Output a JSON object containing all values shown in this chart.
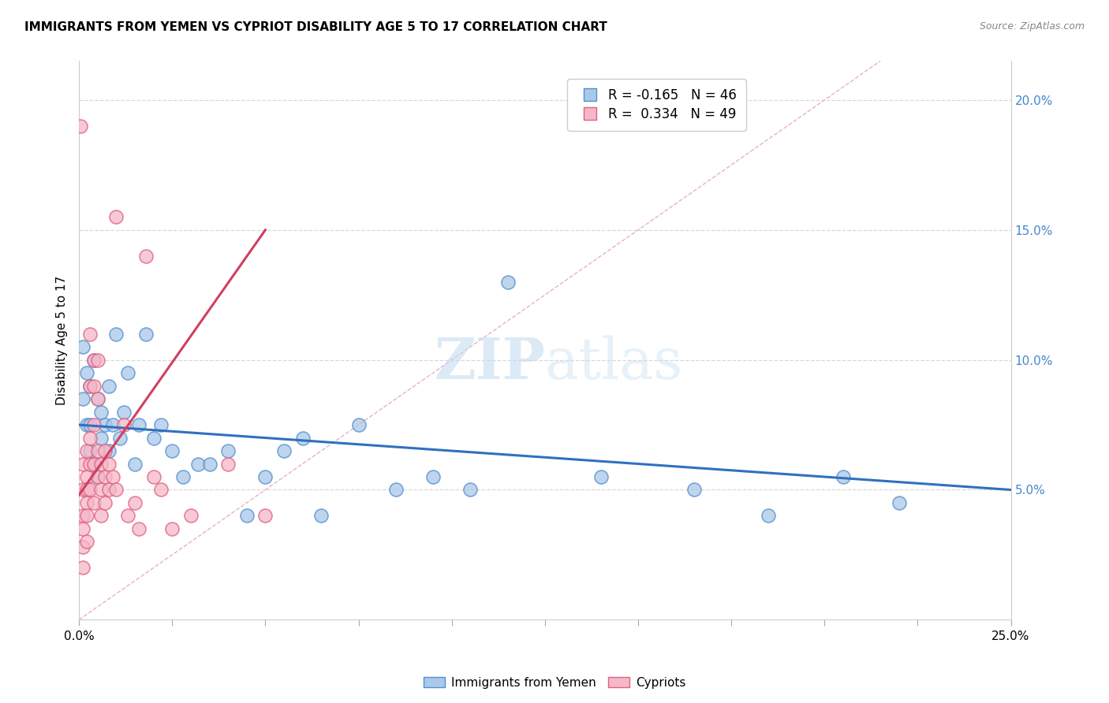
{
  "title": "IMMIGRANTS FROM YEMEN VS CYPRIOT DISABILITY AGE 5 TO 17 CORRELATION CHART",
  "source": "Source: ZipAtlas.com",
  "ylabel_left": "Disability Age 5 to 17",
  "legend_blue_r": "R = -0.165",
  "legend_blue_n": "N = 46",
  "legend_pink_r": "R =  0.334",
  "legend_pink_n": "N = 49",
  "xlim": [
    0.0,
    0.25
  ],
  "ylim": [
    0.0,
    0.215
  ],
  "xtick_values": [
    0.0,
    0.025,
    0.05,
    0.075,
    0.1,
    0.125,
    0.15,
    0.175,
    0.2,
    0.225,
    0.25
  ],
  "xtick_show": [
    0.0,
    0.25
  ],
  "ytick_right_values": [
    0.05,
    0.1,
    0.15,
    0.2
  ],
  "blue_color": "#aac8e8",
  "pink_color": "#f5b8c8",
  "blue_edge_color": "#5090d0",
  "pink_edge_color": "#e06080",
  "blue_line_color": "#3070c0",
  "pink_line_color": "#d04060",
  "ref_line_color": "#e0a0b0",
  "background_color": "#ffffff",
  "grid_color": "#d8d8d8",
  "blue_points_x": [
    0.001,
    0.001,
    0.002,
    0.002,
    0.003,
    0.003,
    0.003,
    0.004,
    0.004,
    0.005,
    0.005,
    0.006,
    0.006,
    0.007,
    0.008,
    0.008,
    0.009,
    0.01,
    0.011,
    0.012,
    0.013,
    0.015,
    0.016,
    0.018,
    0.02,
    0.022,
    0.025,
    0.028,
    0.032,
    0.035,
    0.04,
    0.045,
    0.05,
    0.055,
    0.06,
    0.065,
    0.075,
    0.085,
    0.095,
    0.105,
    0.115,
    0.14,
    0.165,
    0.185,
    0.205,
    0.22
  ],
  "blue_points_y": [
    0.085,
    0.105,
    0.075,
    0.095,
    0.065,
    0.09,
    0.075,
    0.06,
    0.1,
    0.055,
    0.085,
    0.07,
    0.08,
    0.075,
    0.065,
    0.09,
    0.075,
    0.11,
    0.07,
    0.08,
    0.095,
    0.06,
    0.075,
    0.11,
    0.07,
    0.075,
    0.065,
    0.055,
    0.06,
    0.06,
    0.065,
    0.04,
    0.055,
    0.065,
    0.07,
    0.04,
    0.075,
    0.05,
    0.055,
    0.05,
    0.13,
    0.055,
    0.05,
    0.04,
    0.055,
    0.045
  ],
  "pink_points_x": [
    0.0005,
    0.001,
    0.001,
    0.001,
    0.001,
    0.001,
    0.001,
    0.002,
    0.002,
    0.002,
    0.002,
    0.002,
    0.002,
    0.003,
    0.003,
    0.003,
    0.003,
    0.003,
    0.004,
    0.004,
    0.004,
    0.004,
    0.004,
    0.005,
    0.005,
    0.005,
    0.005,
    0.006,
    0.006,
    0.006,
    0.007,
    0.007,
    0.007,
    0.008,
    0.008,
    0.009,
    0.01,
    0.01,
    0.012,
    0.013,
    0.015,
    0.016,
    0.018,
    0.02,
    0.022,
    0.025,
    0.03,
    0.04,
    0.05
  ],
  "pink_points_y": [
    0.19,
    0.06,
    0.05,
    0.04,
    0.035,
    0.028,
    0.02,
    0.065,
    0.055,
    0.05,
    0.045,
    0.04,
    0.03,
    0.11,
    0.09,
    0.07,
    0.06,
    0.05,
    0.1,
    0.09,
    0.075,
    0.06,
    0.045,
    0.1,
    0.085,
    0.065,
    0.055,
    0.06,
    0.05,
    0.04,
    0.065,
    0.055,
    0.045,
    0.06,
    0.05,
    0.055,
    0.155,
    0.05,
    0.075,
    0.04,
    0.045,
    0.035,
    0.14,
    0.055,
    0.05,
    0.035,
    0.04,
    0.06,
    0.04
  ],
  "blue_trend_x": [
    0.0,
    0.25
  ],
  "blue_trend_y": [
    0.075,
    0.05
  ],
  "pink_trend_x": [
    0.0,
    0.05
  ],
  "pink_trend_y": [
    0.048,
    0.15
  ],
  "ref_line_x": [
    0.0,
    0.215
  ],
  "ref_line_y": [
    0.0,
    0.215
  ],
  "watermark_zip": "ZIP",
  "watermark_atlas": "atlas",
  "legend_entry1": "Immigrants from Yemen",
  "legend_entry2": "Cypriots"
}
